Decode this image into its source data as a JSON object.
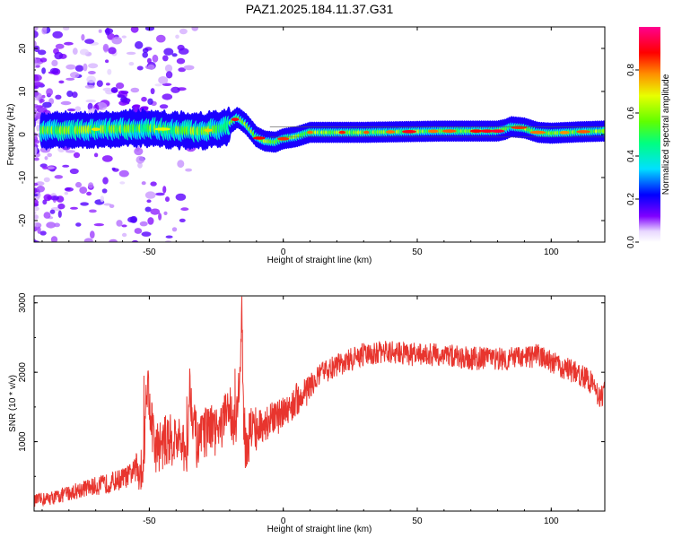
{
  "title": "PAZ1.2025.184.11.37.G31",
  "chart_data": [
    {
      "type": "heatmap",
      "xlabel": "Height of straight line (km)",
      "ylabel": "Frequency (Hz)",
      "xlim": [
        -93,
        120
      ],
      "ylim": [
        -25,
        25
      ],
      "xticks": [
        -50,
        0,
        50,
        100
      ],
      "yticks": [
        -20,
        -10,
        0,
        10,
        20
      ],
      "colorbar": {
        "label": "Normalized spectral amplitude",
        "range": [
          0,
          1
        ],
        "ticks": [
          "0.0",
          "0.2",
          "0.4",
          "0.6",
          "0.8"
        ]
      },
      "ridge": {
        "x": [
          -90,
          -80,
          -70,
          -60,
          -50,
          -40,
          -30,
          -22,
          -17,
          -14,
          -10,
          -7,
          -3,
          0,
          5,
          10,
          20,
          30,
          40,
          50,
          60,
          70,
          80,
          83,
          85,
          90,
          95,
          100,
          110,
          120
        ],
        "freq": [
          1.0,
          1.0,
          1.2,
          1.3,
          1.5,
          1.0,
          0.8,
          1.5,
          4.0,
          2.5,
          -0.5,
          -1.5,
          -1.8,
          -1.0,
          -0.5,
          0.5,
          0.5,
          0.5,
          0.6,
          0.7,
          0.8,
          0.8,
          0.8,
          1.2,
          1.8,
          1.5,
          0.5,
          0.3,
          0.6,
          0.8
        ]
      }
    },
    {
      "type": "line",
      "xlabel": "Height of straight line (km)",
      "ylabel": "SNR (10 * v/v)",
      "xlim": [
        -93,
        120
      ],
      "ylim": [
        0,
        3100
      ],
      "xticks": [
        -50,
        0,
        50,
        100
      ],
      "yticks": [
        1000,
        2000,
        3000
      ],
      "series": [
        {
          "color": "#e8352e",
          "x": [
            -93,
            -85,
            -75,
            -65,
            -58,
            -52,
            -51,
            -48,
            -44,
            -40,
            -36,
            -35,
            -32,
            -28,
            -25,
            -22,
            -20,
            -18,
            -16,
            -15.5,
            -15,
            -14,
            -12,
            -10,
            -5,
            0,
            5,
            10,
            15,
            20,
            30,
            40,
            50,
            60,
            70,
            80,
            90,
            95,
            100,
            105,
            110,
            115,
            118,
            120
          ],
          "y": [
            150,
            200,
            320,
            400,
            500,
            700,
            1950,
            900,
            1000,
            1050,
            800,
            1800,
            900,
            1200,
            1100,
            1300,
            1500,
            1200,
            2000,
            3050,
            1500,
            900,
            1200,
            1200,
            1300,
            1400,
            1600,
            1800,
            2000,
            2100,
            2250,
            2300,
            2250,
            2250,
            2200,
            2200,
            2200,
            2250,
            2150,
            2050,
            2000,
            1850,
            1650,
            1700
          ]
        }
      ]
    }
  ]
}
